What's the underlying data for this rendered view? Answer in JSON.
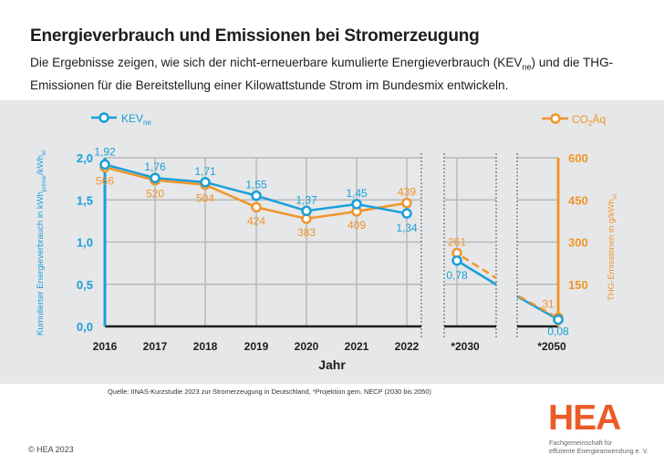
{
  "header": {
    "title": "Energieverbrauch und Emissionen bei Stromerzeugung",
    "subtitle_part1": "Die Ergebnisse zeigen, wie sich der nicht-erneuerbare kumulierte Energieverbrauch (KEV",
    "subtitle_sub": "ne",
    "subtitle_part2": ") und die THG-Emissionen für die Bereitstellung einer Kilowattstunde Strom im Bundesmix entwickeln."
  },
  "colors": {
    "kev": "#1a9fd9",
    "co2": "#f0952a",
    "panel": "#e6e7e8",
    "grid": "#b8b9bb",
    "brand": "#ea5b26"
  },
  "chart_data": {
    "type": "line",
    "title": "Energieverbrauch und Emissionen bei Stromerzeugung",
    "xlabel": "Jahr",
    "ylabel_left": "Kumulierter Energieverbrauch in kWh_primär/kWh_el",
    "ylabel_left_parts": [
      "Kumulierter Energieverbrauch in kWh",
      "primär",
      "/kWh",
      "el"
    ],
    "ylabel_right": "THG-Emissionen in g/kWh_el",
    "ylabel_right_parts": [
      "THG-Emissionen in g/kWh",
      "el"
    ],
    "categories": [
      "2016",
      "2017",
      "2018",
      "2019",
      "2020",
      "2021",
      "2022",
      "*2030",
      "*2050"
    ],
    "ylim_left": [
      0,
      2.0
    ],
    "ylim_right": [
      0,
      600
    ],
    "yticks_left": [
      "0,0",
      "0,5",
      "1,0",
      "1,5",
      "2,0"
    ],
    "yticks_right": [
      "150",
      "300",
      "450",
      "600"
    ],
    "legend": [
      {
        "name": "KEV",
        "sub": "ne",
        "position": "top-left"
      },
      {
        "name": "CO",
        "sub": "2",
        "suffix": "Äq",
        "position": "top-right"
      }
    ],
    "series": [
      {
        "name": "KEVne",
        "axis": "left",
        "values": [
          1.92,
          1.76,
          1.71,
          1.55,
          1.37,
          1.45,
          1.34,
          0.78,
          0.08
        ],
        "labels": [
          "1,92",
          "1,76",
          "1,71",
          "1,55",
          "1,37",
          "1,45",
          "1,34",
          "0,78",
          "0,08"
        ]
      },
      {
        "name": "CO2Äq",
        "axis": "right",
        "values": [
          566,
          520,
          504,
          424,
          383,
          409,
          439,
          261,
          31
        ],
        "labels": [
          "566",
          "520",
          "504",
          "424",
          "383",
          "409",
          "439",
          "261",
          "31"
        ]
      }
    ],
    "grid": true,
    "note": "projection segments 2030–2050 shown with axis breaks"
  },
  "footer": {
    "source": "Quelle: IINAS-Kurzstudie 2023 zur Stromerzeugung in Deutschland, *Projektion gem. NECP (2030 bis 2050)",
    "copyright": "© HEA 2023",
    "logo": "HEA",
    "logo_line1": "Fachgemeinschaft für",
    "logo_line2": "effiziente Energieanwendung e. V."
  }
}
